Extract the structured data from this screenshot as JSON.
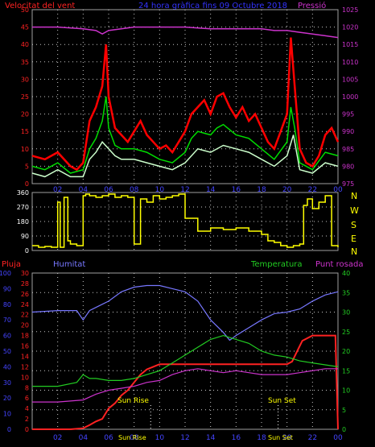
{
  "header": {
    "wind_label": "Velocitat del vent",
    "title": "24 hora gràfica fins 09 Octubre 2018",
    "pressure_label": "Pressió"
  },
  "compass_labels": [
    "N",
    "W",
    "S",
    "E",
    "N"
  ],
  "lower_header": {
    "rain_label": "Pluja",
    "humidity_label": "Humitat",
    "temperature_label": "Temperatura",
    "dewpoint_label": "Punt rosada"
  },
  "annotations": {
    "sunrise_label": "Sun Rise",
    "sunset_label": "Sun Set",
    "sunrise_bottom_label": "Sun Rise",
    "sunset_bottom_label": "Sun Set"
  },
  "colors": {
    "background": "#000000",
    "grid": "#c8c8c8",
    "axis": "#a0a0a0",
    "wind_gust": "#ff0000",
    "wind_avg": "#00dd00",
    "wind_speed": "#ccffcc",
    "pressure": "#cc33cc",
    "direction": "#ffff00",
    "rain": "#ff2222",
    "humidity": "#7777ff",
    "temperature": "#22cc22",
    "dewpoint": "#cc33cc",
    "tick_text_blue": "#4444ff",
    "tick_text_red": "#ff2222",
    "tick_text_green": "#22cc22",
    "tick_text_magenta": "#cc33cc",
    "label_yellow": "#ffff00",
    "white": "#ffffff"
  },
  "chart_data": [
    {
      "type": "line",
      "id": "wind-pressure",
      "x_ticks": [
        "02",
        "04",
        "06",
        "08",
        "10",
        "12",
        "14",
        "16",
        "18",
        "20",
        "22",
        "00"
      ],
      "y_left_ticks": [
        0,
        5,
        10,
        15,
        20,
        25,
        30,
        35,
        40,
        45,
        50
      ],
      "y_left_range": [
        0,
        50
      ],
      "y_right_ticks": [
        975,
        980,
        985,
        990,
        995,
        1000,
        1005,
        1010,
        1015,
        1020,
        1025
      ],
      "y_right_range": [
        975,
        1025
      ],
      "x_range_hours": [
        0,
        24
      ],
      "grid": true,
      "series": [
        {
          "name": "Pressió",
          "axis": "right",
          "x": [
            0,
            2,
            4,
            5,
            5.5,
            6,
            7,
            8,
            10,
            12,
            14,
            16,
            18,
            19,
            20,
            21,
            22,
            23,
            24
          ],
          "values": [
            1020,
            1020,
            1019.5,
            1019,
            1018,
            1019,
            1019.5,
            1020,
            1020,
            1020,
            1019.5,
            1019.5,
            1019.5,
            1019,
            1019,
            1018.5,
            1018,
            1017.5,
            1017
          ]
        },
        {
          "axis": "left",
          "x": [
            0,
            1,
            2,
            3,
            3.5,
            4,
            4.5,
            5,
            5.5,
            5.8,
            6,
            6.5,
            7,
            7.5,
            8,
            8.5,
            9,
            9.5,
            10,
            10.5,
            11,
            11.5,
            12,
            12.5,
            13,
            13.5,
            14,
            14.5,
            15,
            15.5,
            16,
            16.5,
            17,
            17.5,
            18,
            18.5,
            19,
            19.5,
            20,
            20.3,
            20.6,
            21,
            21.5,
            22,
            22.5,
            23,
            23.5,
            24
          ],
          "values": [
            8,
            7,
            9,
            5,
            4,
            6,
            18,
            22,
            28,
            40,
            25,
            16,
            14,
            12,
            15,
            18,
            14,
            12,
            10,
            11,
            9,
            12,
            15,
            20,
            22,
            24,
            20,
            25,
            26,
            22,
            19,
            22,
            18,
            20,
            16,
            12,
            10,
            15,
            20,
            42,
            28,
            10,
            6,
            5,
            8,
            14,
            16,
            12
          ]
        },
        {
          "axis": "left",
          "x": [
            0,
            1,
            2,
            3,
            4,
            4.5,
            5,
            5.5,
            5.8,
            6,
            6.5,
            7,
            8,
            9,
            10,
            11,
            12,
            12.5,
            13,
            14,
            14.5,
            15,
            16,
            17,
            18,
            19,
            20,
            20.3,
            20.6,
            21,
            22,
            23,
            24
          ],
          "values": [
            5,
            4,
            6,
            3,
            4,
            10,
            13,
            18,
            25,
            16,
            11,
            10,
            10,
            9,
            7,
            6,
            9,
            13,
            15,
            14,
            16,
            17,
            14,
            13,
            10,
            7,
            12,
            22,
            16,
            6,
            4,
            9,
            8
          ]
        },
        {
          "axis": "left",
          "x": [
            0,
            1,
            2,
            3,
            4,
            4.5,
            5,
            5.5,
            6,
            6.5,
            7,
            8,
            9,
            10,
            11,
            12,
            13,
            14,
            15,
            16,
            17,
            18,
            19,
            20,
            20.5,
            21,
            22,
            23,
            24
          ],
          "values": [
            3,
            2,
            4,
            2,
            2,
            7,
            9,
            12,
            10,
            8,
            7,
            7,
            6,
            5,
            4,
            6,
            10,
            9,
            11,
            10,
            9,
            7,
            5,
            8,
            14,
            4,
            3,
            6,
            5
          ]
        }
      ]
    },
    {
      "type": "scatter",
      "id": "wind-direction",
      "y_left_ticks": [
        0,
        90,
        180,
        270,
        360
      ],
      "y_range": [
        0,
        360
      ],
      "x_range_hours": [
        0,
        24
      ],
      "grid": true,
      "series": [
        {
          "x": [
            0,
            0.5,
            1,
            1.5,
            2,
            2.2,
            2.5,
            2.8,
            3,
            3.5,
            4,
            4.2,
            4.5,
            5,
            5.5,
            6,
            6.5,
            7,
            7.5,
            8,
            8.5,
            9,
            9.5,
            10,
            10.5,
            11,
            11.5,
            12,
            13,
            14,
            15,
            16,
            17,
            18,
            18.5,
            19,
            19.5,
            20,
            20.5,
            21,
            21.3,
            21.6,
            22,
            22.5,
            23,
            23.5,
            24
          ],
          "values": [
            30,
            20,
            25,
            20,
            300,
            20,
            330,
            60,
            40,
            30,
            340,
            350,
            340,
            330,
            340,
            350,
            330,
            340,
            330,
            40,
            320,
            300,
            340,
            320,
            330,
            340,
            350,
            200,
            120,
            140,
            130,
            140,
            120,
            100,
            60,
            50,
            30,
            20,
            30,
            40,
            280,
            320,
            260,
            300,
            340,
            30,
            20
          ]
        }
      ]
    },
    {
      "type": "line",
      "id": "rain-humidity-temp-dew",
      "x_ticks": [
        "02",
        "04",
        "06",
        "08",
        "10",
        "12",
        "14",
        "16",
        "18",
        "20",
        "22",
        "00"
      ],
      "y_humidity_ticks": [
        0,
        10,
        20,
        30,
        40,
        50,
        60,
        70,
        80,
        90,
        100
      ],
      "y_rain_ticks": [
        0,
        2,
        4,
        6,
        8,
        10,
        12,
        14,
        16,
        18,
        20,
        22,
        24,
        26,
        28,
        30
      ],
      "y_temp_ticks": [
        0,
        5,
        10,
        15,
        20,
        25,
        30,
        35,
        40
      ],
      "humidity_range": [
        0,
        100
      ],
      "rain_range": [
        0,
        30
      ],
      "temp_range": [
        0,
        40
      ],
      "x_range_hours": [
        0,
        24
      ],
      "grid": true,
      "series": [
        {
          "name": "Humitat",
          "axis": "humidity",
          "x": [
            0,
            2,
            3.5,
            4,
            4.5,
            5,
            6,
            7,
            8,
            9,
            10,
            11,
            12,
            13,
            14,
            15,
            15.5,
            16,
            17,
            18,
            19,
            20,
            21,
            22,
            23,
            24
          ],
          "values": [
            75,
            76,
            76,
            70,
            76,
            78,
            82,
            88,
            91,
            92,
            92,
            90,
            88,
            82,
            70,
            62,
            57,
            60,
            65,
            70,
            74,
            75,
            77,
            82,
            86,
            88
          ]
        },
        {
          "name": "Pluja",
          "axis": "rain",
          "x": [
            0,
            3,
            4,
            4.5,
            5,
            5.5,
            6,
            6.5,
            7,
            7.5,
            8,
            8.5,
            9,
            9.5,
            10,
            14,
            18,
            20,
            20.4,
            20.8,
            21.2,
            22,
            23,
            23.8,
            24
          ],
          "values": [
            0,
            0,
            0.2,
            0.8,
            1.5,
            2,
            4,
            5,
            6.5,
            7.5,
            9,
            10.5,
            11.5,
            12,
            12.5,
            12.5,
            12.5,
            12.5,
            13,
            15,
            17,
            18,
            18,
            18,
            0
          ]
        },
        {
          "name": "Temperatura",
          "axis": "temp",
          "x": [
            0,
            2,
            3.5,
            4,
            4.5,
            5,
            6,
            7,
            8,
            9,
            10,
            11,
            12,
            13,
            14,
            15,
            16,
            17,
            18,
            19,
            20,
            21,
            22,
            23,
            24
          ],
          "values": [
            11,
            11,
            12,
            14,
            13,
            13,
            12.5,
            12.5,
            13,
            14,
            15,
            17,
            19,
            21,
            23,
            24,
            23,
            22,
            20,
            19,
            18.5,
            17.5,
            17,
            16.5,
            16
          ]
        },
        {
          "name": "Punt rosada",
          "axis": "temp",
          "x": [
            0,
            2,
            4,
            5,
            6,
            7,
            8,
            9,
            10,
            11,
            12,
            13,
            14,
            15,
            16,
            17,
            18,
            19,
            20,
            21,
            22,
            23,
            24
          ],
          "values": [
            7,
            7,
            7.5,
            9,
            10,
            10.5,
            11,
            12,
            12.5,
            14,
            15,
            15.5,
            15,
            14.5,
            15,
            14.5,
            14,
            14,
            14,
            14.5,
            15,
            15.5,
            15.5
          ]
        }
      ]
    }
  ]
}
